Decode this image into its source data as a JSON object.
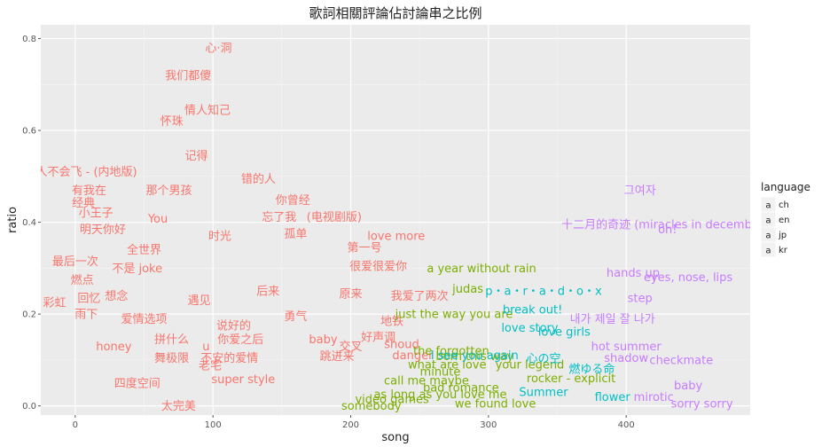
{
  "chart_data": {
    "type": "scatter",
    "title": "歌詞相關評論佔討論串之比例",
    "xlabel": "song",
    "ylabel": "ratio",
    "xlim": [
      -25,
      490
    ],
    "ylim": [
      -0.02,
      0.83
    ],
    "xticks": [
      0,
      100,
      200,
      300,
      400
    ],
    "yticks": [
      0.0,
      0.2,
      0.4,
      0.6,
      0.8
    ],
    "grid": true,
    "legend": {
      "title": "language",
      "position": "right",
      "items": [
        {
          "key": "ch",
          "symbol": "a",
          "color": "#F8766D"
        },
        {
          "key": "en",
          "symbol": "a",
          "color": "#7CAE00"
        },
        {
          "key": "jp",
          "symbol": "a",
          "color": "#00BFC4"
        },
        {
          "key": "kr",
          "symbol": "a",
          "color": "#C77CFF"
        }
      ]
    },
    "points": [
      {
        "x": 104,
        "y": 0.78,
        "label": "心·洞",
        "language": "ch"
      },
      {
        "x": 82,
        "y": 0.72,
        "label": "我们都傻",
        "language": "ch"
      },
      {
        "x": 96,
        "y": 0.645,
        "label": "情人知己",
        "language": "ch"
      },
      {
        "x": 70,
        "y": 0.62,
        "label": "怀珠",
        "language": "ch"
      },
      {
        "x": 88,
        "y": 0.545,
        "label": "记得",
        "language": "ch"
      },
      {
        "x": 4,
        "y": 0.51,
        "label": "超人不会飞 - (内地版)",
        "language": "ch"
      },
      {
        "x": 133,
        "y": 0.495,
        "label": "错的人",
        "language": "ch"
      },
      {
        "x": 10,
        "y": 0.47,
        "label": "有我在",
        "language": "ch"
      },
      {
        "x": 68,
        "y": 0.47,
        "label": "那个男孩",
        "language": "ch"
      },
      {
        "x": 158,
        "y": 0.448,
        "label": "你曾经",
        "language": "ch"
      },
      {
        "x": 6,
        "y": 0.443,
        "label": "经典",
        "language": "ch"
      },
      {
        "x": 148,
        "y": 0.412,
        "label": "忘了我",
        "language": "ch"
      },
      {
        "x": 188,
        "y": 0.412,
        "label": "(电视剧版)",
        "language": "ch"
      },
      {
        "x": 15,
        "y": 0.42,
        "label": "小王子",
        "language": "ch"
      },
      {
        "x": 60,
        "y": 0.408,
        "label": "You",
        "language": "ch"
      },
      {
        "x": 20,
        "y": 0.385,
        "label": "明天你好",
        "language": "ch"
      },
      {
        "x": 105,
        "y": 0.37,
        "label": "时光",
        "language": "ch"
      },
      {
        "x": 160,
        "y": 0.375,
        "label": "孤单",
        "language": "ch"
      },
      {
        "x": 233,
        "y": 0.37,
        "label": "love more",
        "language": "ch"
      },
      {
        "x": 210,
        "y": 0.345,
        "label": "第一号",
        "language": "ch"
      },
      {
        "x": 50,
        "y": 0.34,
        "label": "全世界",
        "language": "ch"
      },
      {
        "x": 0,
        "y": 0.315,
        "label": "最后一次",
        "language": "ch"
      },
      {
        "x": 45,
        "y": 0.3,
        "label": "不是 joke",
        "language": "ch"
      },
      {
        "x": 5,
        "y": 0.275,
        "label": "燃点",
        "language": "ch"
      },
      {
        "x": 220,
        "y": 0.305,
        "label": "很爱很爱你",
        "language": "ch"
      },
      {
        "x": -15,
        "y": 0.225,
        "label": "彩虹",
        "language": "ch"
      },
      {
        "x": 10,
        "y": 0.235,
        "label": "回忆",
        "language": "ch"
      },
      {
        "x": 30,
        "y": 0.24,
        "label": "想念",
        "language": "ch"
      },
      {
        "x": 90,
        "y": 0.23,
        "label": "遇见",
        "language": "ch"
      },
      {
        "x": 140,
        "y": 0.25,
        "label": "后来",
        "language": "ch"
      },
      {
        "x": 200,
        "y": 0.245,
        "label": "原来",
        "language": "ch"
      },
      {
        "x": 250,
        "y": 0.24,
        "label": "我爱了两次",
        "language": "ch"
      },
      {
        "x": 8,
        "y": 0.2,
        "label": "雨下",
        "language": "ch"
      },
      {
        "x": 50,
        "y": 0.19,
        "label": "爱情选项",
        "language": "ch"
      },
      {
        "x": 115,
        "y": 0.175,
        "label": "说好的",
        "language": "ch"
      },
      {
        "x": 160,
        "y": 0.195,
        "label": "勇气",
        "language": "ch"
      },
      {
        "x": 230,
        "y": 0.185,
        "label": "地铁",
        "language": "ch"
      },
      {
        "x": 70,
        "y": 0.145,
        "label": "拼什么",
        "language": "ch"
      },
      {
        "x": 120,
        "y": 0.145,
        "label": "你爱之后",
        "language": "ch"
      },
      {
        "x": 220,
        "y": 0.15,
        "label": "好声调",
        "language": "ch"
      },
      {
        "x": 28,
        "y": 0.13,
        "label": "honey",
        "language": "ch"
      },
      {
        "x": 95,
        "y": 0.13,
        "label": "u",
        "language": "ch"
      },
      {
        "x": 180,
        "y": 0.145,
        "label": "baby",
        "language": "ch"
      },
      {
        "x": 200,
        "y": 0.13,
        "label": "交叉",
        "language": "ch"
      },
      {
        "x": 237,
        "y": 0.135,
        "label": "shoud",
        "language": "ch"
      },
      {
        "x": 70,
        "y": 0.105,
        "label": "舞极限",
        "language": "ch"
      },
      {
        "x": 112,
        "y": 0.105,
        "label": "不安的爱情",
        "language": "ch"
      },
      {
        "x": 190,
        "y": 0.108,
        "label": "跳进来",
        "language": "ch"
      },
      {
        "x": 245,
        "y": 0.11,
        "label": "danger",
        "language": "ch"
      },
      {
        "x": 98,
        "y": 0.088,
        "label": "老宅",
        "language": "ch"
      },
      {
        "x": 45,
        "y": 0.05,
        "label": "四度空间",
        "language": "ch"
      },
      {
        "x": 122,
        "y": 0.058,
        "label": "super style",
        "language": "ch"
      },
      {
        "x": 75,
        "y": 0.0,
        "label": "太完美",
        "language": "ch"
      },
      {
        "x": 295,
        "y": 0.3,
        "label": "a year without rain",
        "language": "en"
      },
      {
        "x": 285,
        "y": 0.255,
        "label": "judas",
        "language": "en"
      },
      {
        "x": 275,
        "y": 0.2,
        "label": "just the way you are",
        "language": "en"
      },
      {
        "x": 273,
        "y": 0.12,
        "label": "the forgotten",
        "language": "en"
      },
      {
        "x": 290,
        "y": 0.108,
        "label": "born this way",
        "language": "en"
      },
      {
        "x": 270,
        "y": 0.09,
        "label": "what are love",
        "language": "en"
      },
      {
        "x": 265,
        "y": 0.075,
        "label": "minute",
        "language": "en"
      },
      {
        "x": 255,
        "y": 0.055,
        "label": "call me maybe",
        "language": "en"
      },
      {
        "x": 280,
        "y": 0.04,
        "label": "bad romance",
        "language": "en"
      },
      {
        "x": 230,
        "y": 0.015,
        "label": "video games",
        "language": "en"
      },
      {
        "x": 215,
        "y": 0.0,
        "label": "somebody",
        "language": "en"
      },
      {
        "x": 330,
        "y": 0.09,
        "label": "your legend",
        "language": "en"
      },
      {
        "x": 360,
        "y": 0.06,
        "label": "rocker - explicit",
        "language": "en"
      },
      {
        "x": 265,
        "y": 0.025,
        "label": "as long as you love me",
        "language": "en"
      },
      {
        "x": 305,
        "y": 0.005,
        "label": "we found love",
        "language": "en"
      },
      {
        "x": 340,
        "y": 0.25,
        "label": "p・a・r・a・d・o・x",
        "language": "jp"
      },
      {
        "x": 332,
        "y": 0.21,
        "label": "break out!",
        "language": "jp"
      },
      {
        "x": 330,
        "y": 0.17,
        "label": "love story",
        "language": "jp"
      },
      {
        "x": 355,
        "y": 0.162,
        "label": "love girls",
        "language": "jp"
      },
      {
        "x": 290,
        "y": 0.11,
        "label": "I see you again",
        "language": "jp"
      },
      {
        "x": 340,
        "y": 0.104,
        "label": "心の空",
        "language": "jp"
      },
      {
        "x": 375,
        "y": 0.08,
        "label": "燃ゆる命",
        "language": "jp"
      },
      {
        "x": 340,
        "y": 0.03,
        "label": "Summer",
        "language": "jp"
      },
      {
        "x": 390,
        "y": 0.02,
        "label": "flower",
        "language": "jp"
      },
      {
        "x": 410,
        "y": 0.47,
        "label": "그여자",
        "language": "kr"
      },
      {
        "x": 428,
        "y": 0.395,
        "label": "十二月的奇迹 (miracles in december)",
        "language": "kr"
      },
      {
        "x": 430,
        "y": 0.385,
        "label": "oh!",
        "language": "kr"
      },
      {
        "x": 405,
        "y": 0.29,
        "label": "hands up",
        "language": "kr"
      },
      {
        "x": 445,
        "y": 0.28,
        "label": "eyes, nose, lips",
        "language": "kr"
      },
      {
        "x": 410,
        "y": 0.235,
        "label": "step",
        "language": "kr"
      },
      {
        "x": 390,
        "y": 0.19,
        "label": "내가 제일 잘 나가",
        "language": "kr"
      },
      {
        "x": 400,
        "y": 0.13,
        "label": "hot summer",
        "language": "kr"
      },
      {
        "x": 400,
        "y": 0.105,
        "label": "shadow",
        "language": "kr"
      },
      {
        "x": 440,
        "y": 0.1,
        "label": "checkmate",
        "language": "kr"
      },
      {
        "x": 445,
        "y": 0.045,
        "label": "baby",
        "language": "kr"
      },
      {
        "x": 420,
        "y": 0.02,
        "label": "mirotic",
        "language": "kr"
      },
      {
        "x": 455,
        "y": 0.005,
        "label": "sorry sorry",
        "language": "kr"
      }
    ]
  }
}
